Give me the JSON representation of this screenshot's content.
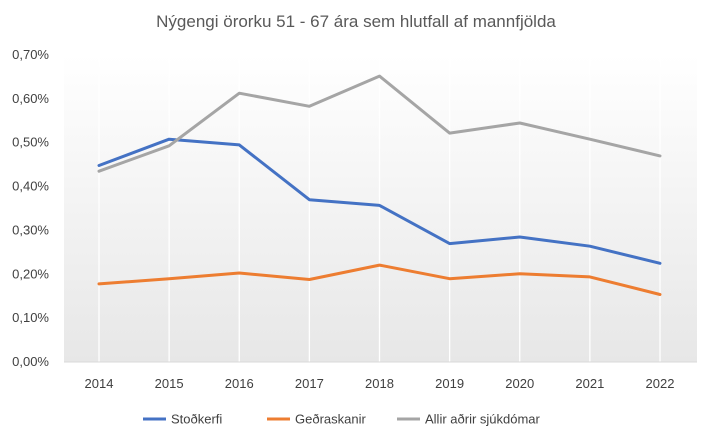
{
  "chart_data": {
    "type": "line",
    "title": "Nýgengi örorku 51 - 67 ára sem hlutfall af mannfjölda",
    "xlabel": "",
    "ylabel": "",
    "categories": [
      "2014",
      "2015",
      "2016",
      "2017",
      "2018",
      "2019",
      "2020",
      "2021",
      "2022"
    ],
    "ylim": [
      0,
      0.7
    ],
    "yticks": [
      {
        "value": 0.0,
        "label": "0,00%"
      },
      {
        "value": 0.1,
        "label": "0,10%"
      },
      {
        "value": 0.2,
        "label": "0,20%"
      },
      {
        "value": 0.3,
        "label": "0,30%"
      },
      {
        "value": 0.4,
        "label": "0,40%"
      },
      {
        "value": 0.5,
        "label": "0,50%"
      },
      {
        "value": 0.6,
        "label": "0,60%"
      },
      {
        "value": 0.7,
        "label": "0,70%"
      }
    ],
    "grid": "vertical",
    "legend_position": "bottom",
    "series": [
      {
        "name": "Stoðkerfi",
        "color": "#4472C4",
        "values": [
          0.448,
          0.508,
          0.495,
          0.37,
          0.357,
          0.27,
          0.285,
          0.264,
          0.225
        ]
      },
      {
        "name": "Geðraskanir",
        "color": "#ED7D31",
        "values": [
          0.178,
          0.19,
          0.203,
          0.188,
          0.221,
          0.19,
          0.201,
          0.194,
          0.154
        ]
      },
      {
        "name": "Allir aðrir sjúkdómar",
        "color": "#A5A5A5",
        "values": [
          0.435,
          0.493,
          0.613,
          0.583,
          0.652,
          0.522,
          0.545,
          0.508,
          0.47
        ]
      }
    ]
  }
}
